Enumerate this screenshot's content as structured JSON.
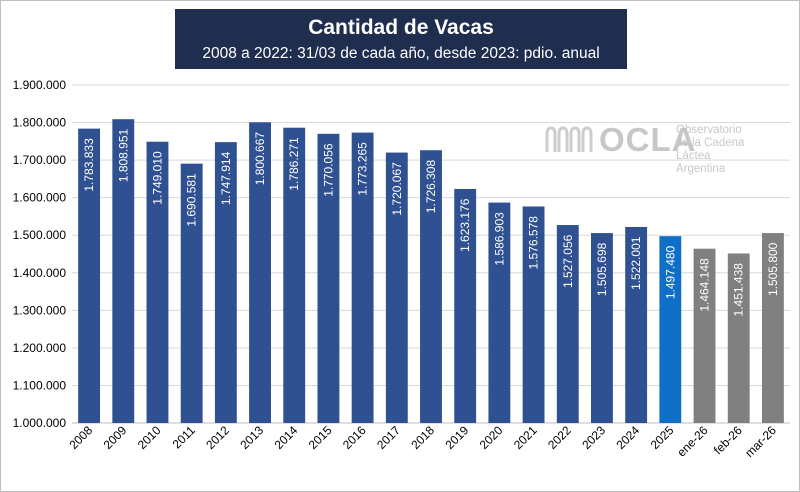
{
  "title": "Cantidad  de Vacas",
  "subtitle": "2008 a 2022: 31/03 de cada año, desde 2023: pdio. anual",
  "logo": {
    "mark_icon": "milk-bottles-icon",
    "name": "OCLA",
    "line1": "Observatorio",
    "line2": "de la Cadena Láctea",
    "line3": "Argentina"
  },
  "colors": {
    "title_bg": "#1f2d4e",
    "annual": "#2f5191",
    "highlight": "#0f6fc6",
    "monthly": "#808080"
  },
  "chart_data": {
    "type": "bar",
    "title": "Cantidad  de Vacas",
    "subtitle": "2008 a 2022: 31/03 de cada año, desde 2023: pdio. anual",
    "ylim": [
      1000000,
      1900000
    ],
    "yticks": [
      {
        "value": 1000000,
        "label": "1.000.000"
      },
      {
        "value": 1100000,
        "label": "1.100.000"
      },
      {
        "value": 1200000,
        "label": "1.200.000"
      },
      {
        "value": 1300000,
        "label": "1.300.000"
      },
      {
        "value": 1400000,
        "label": "1.400.000"
      },
      {
        "value": 1500000,
        "label": "1.500.000"
      },
      {
        "value": 1600000,
        "label": "1.600.000"
      },
      {
        "value": 1700000,
        "label": "1.700.000"
      },
      {
        "value": 1800000,
        "label": "1.800.000"
      },
      {
        "value": 1900000,
        "label": "1.900.000"
      }
    ],
    "grid": true,
    "categories": [
      "2008",
      "2009",
      "2010",
      "2011",
      "2012",
      "2013",
      "2014",
      "2015",
      "2016",
      "2017",
      "2018",
      "2019",
      "2020",
      "2021",
      "2022",
      "2023",
      "2024",
      "2025",
      "ene-26",
      "feb-26",
      "mar-26"
    ],
    "values": [
      1783833,
      1808951,
      1749010,
      1690581,
      1747914,
      1800667,
      1786271,
      1770056,
      1773265,
      1720067,
      1726308,
      1623176,
      1586903,
      1576578,
      1527056,
      1505698,
      1522001,
      1497480,
      1464148,
      1451438,
      1505800
    ],
    "labels": [
      "1.783.833",
      "1.808.951",
      "1.749.010",
      "1.690.581",
      "1.747.914",
      "1.800.667",
      "1.786.271",
      "1.770.056",
      "1.773.265",
      "1.720.067",
      "1.726.308",
      "1.623.176",
      "1.586.903",
      "1.576.578",
      "1.527.056",
      "1.505.698",
      "1.522.001",
      "1.497.480",
      "1.464.148",
      "1.451.438",
      "1.505.800"
    ],
    "bar_colors": [
      "#2f5191",
      "#2f5191",
      "#2f5191",
      "#2f5191",
      "#2f5191",
      "#2f5191",
      "#2f5191",
      "#2f5191",
      "#2f5191",
      "#2f5191",
      "#2f5191",
      "#2f5191",
      "#2f5191",
      "#2f5191",
      "#2f5191",
      "#2f5191",
      "#2f5191",
      "#0f6fc6",
      "#808080",
      "#808080",
      "#808080"
    ]
  }
}
